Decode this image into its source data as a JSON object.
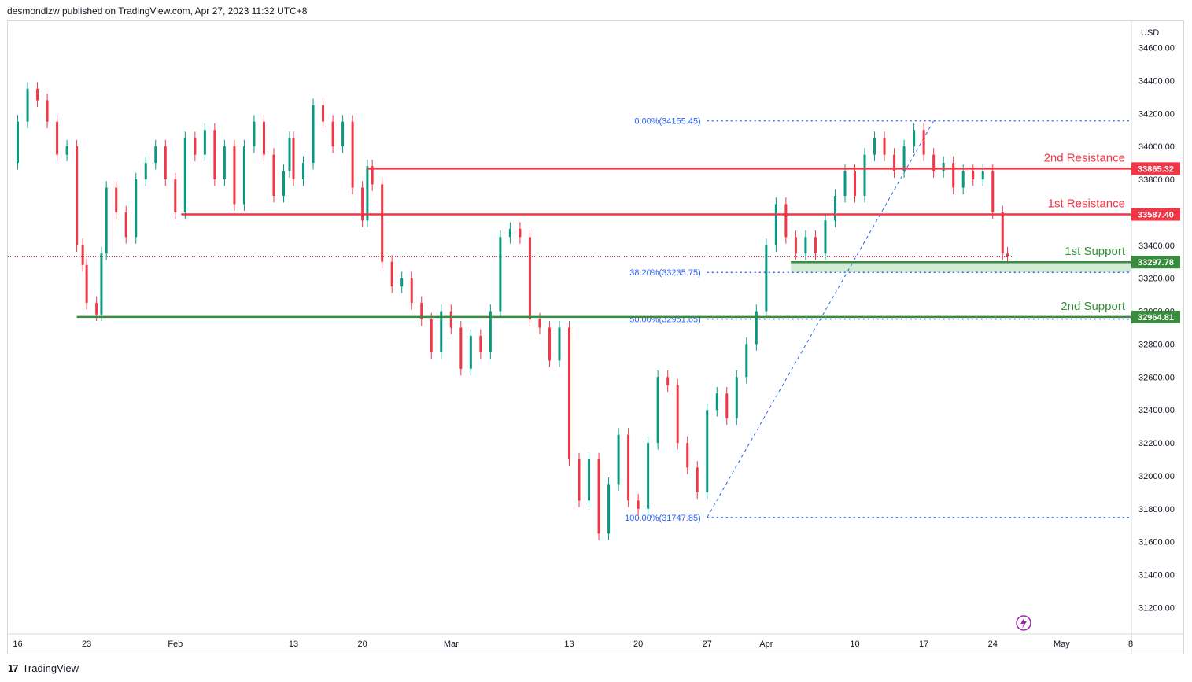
{
  "header": {
    "publisher_line": "desmondlzw published on TradingView.com, Apr 27, 2023 11:32 UTC+8"
  },
  "footer": {
    "brand": "TradingView",
    "logo_glyph": "17"
  },
  "chart_data": {
    "type": "candlestick",
    "currency": "USD",
    "ylim": [
      31040,
      34760
    ],
    "yticks": [
      34600,
      34400,
      34200,
      34000,
      33800,
      33600,
      33400,
      33200,
      33000,
      32800,
      32600,
      32400,
      32200,
      32000,
      31800,
      31600,
      31400,
      31200
    ],
    "ytick_labels": [
      "34600.00",
      "34400.00",
      "34200.00",
      "34000.00",
      "33800.00",
      "33600.00",
      "33400.00",
      "33200.00",
      "33000.00",
      "32800.00",
      "32600.00",
      "32400.00",
      "32200.00",
      "32000.00",
      "31800.00",
      "31600.00",
      "31400.00",
      "31200.00"
    ],
    "x_range_days": [
      -1,
      113
    ],
    "xticks": [
      {
        "label": "16",
        "day": 0
      },
      {
        "label": "23",
        "day": 7
      },
      {
        "label": "Feb",
        "day": 16
      },
      {
        "label": "13",
        "day": 28
      },
      {
        "label": "20",
        "day": 35
      },
      {
        "label": "Mar",
        "day": 44
      },
      {
        "label": "13",
        "day": 56
      },
      {
        "label": "20",
        "day": 63
      },
      {
        "label": "27",
        "day": 70
      },
      {
        "label": "Apr",
        "day": 76
      },
      {
        "label": "10",
        "day": 85
      },
      {
        "label": "17",
        "day": 92
      },
      {
        "label": "24",
        "day": 99
      },
      {
        "label": "May",
        "day": 106
      },
      {
        "label": "8",
        "day": 113
      }
    ],
    "candles": [
      [
        0.0,
        33900,
        34150
      ],
      [
        1.0,
        34150,
        34350
      ],
      [
        2.0,
        34350,
        34280
      ],
      [
        3.0,
        34280,
        34150
      ],
      [
        4.0,
        34150,
        33950
      ],
      [
        5.0,
        33950,
        34000
      ],
      [
        6.0,
        34000,
        33400
      ],
      [
        6.6,
        33400,
        33280
      ],
      [
        7.0,
        33280,
        33050
      ],
      [
        8.0,
        33050,
        32980
      ],
      [
        8.5,
        32980,
        33350
      ],
      [
        9.0,
        33350,
        33750
      ],
      [
        10.0,
        33750,
        33600
      ],
      [
        11.0,
        33600,
        33450
      ],
      [
        12.0,
        33450,
        33800
      ],
      [
        13.0,
        33800,
        33900
      ],
      [
        14.0,
        33900,
        34000
      ],
      [
        15.0,
        34000,
        33800
      ],
      [
        16.0,
        33800,
        33600
      ],
      [
        17.0,
        33600,
        34050
      ],
      [
        18.0,
        34050,
        33950
      ],
      [
        19.0,
        33950,
        34100
      ],
      [
        20.0,
        34100,
        33800
      ],
      [
        21.0,
        33800,
        34000
      ],
      [
        22.0,
        34000,
        33650
      ],
      [
        23.0,
        33650,
        34000
      ],
      [
        24.0,
        34000,
        34150
      ],
      [
        25.0,
        34150,
        33950
      ],
      [
        26.0,
        33950,
        33700
      ],
      [
        27.0,
        33700,
        33850
      ],
      [
        27.6,
        33850,
        34050
      ],
      [
        28.0,
        34050,
        33800
      ],
      [
        29.0,
        33800,
        33900
      ],
      [
        30.0,
        33900,
        34250
      ],
      [
        31.0,
        34250,
        34150
      ],
      [
        32.0,
        34150,
        34000
      ],
      [
        33.0,
        34000,
        34150
      ],
      [
        34.0,
        34150,
        33750
      ],
      [
        35.0,
        33750,
        33550
      ],
      [
        35.5,
        33550,
        33880
      ],
      [
        36.0,
        33880,
        33770
      ],
      [
        37.0,
        33770,
        33300
      ],
      [
        38.0,
        33300,
        33150
      ],
      [
        39.0,
        33150,
        33200
      ],
      [
        40.0,
        33200,
        33050
      ],
      [
        41.0,
        33050,
        32950
      ],
      [
        42.0,
        32950,
        32750
      ],
      [
        43.0,
        32750,
        33000
      ],
      [
        44.0,
        33000,
        32900
      ],
      [
        45.0,
        32900,
        32650
      ],
      [
        46.0,
        32650,
        32850
      ],
      [
        47.0,
        32850,
        32750
      ],
      [
        48.0,
        32750,
        33000
      ],
      [
        49.0,
        33000,
        33450
      ],
      [
        50.0,
        33450,
        33500
      ],
      [
        51.0,
        33500,
        33450
      ],
      [
        52.0,
        33450,
        32950
      ],
      [
        53.0,
        32950,
        32900
      ],
      [
        54.0,
        32900,
        32700
      ],
      [
        55.0,
        32700,
        32900
      ],
      [
        56.0,
        32900,
        32100
      ],
      [
        57.0,
        32100,
        31850
      ],
      [
        58.0,
        31850,
        32100
      ],
      [
        59.0,
        32100,
        31650
      ],
      [
        60.0,
        31650,
        31950
      ],
      [
        61.0,
        31950,
        32250
      ],
      [
        62.0,
        32250,
        31850
      ],
      [
        63.0,
        31850,
        31800
      ],
      [
        64.0,
        31800,
        32200
      ],
      [
        65.0,
        32200,
        32600
      ],
      [
        66.0,
        32600,
        32550
      ],
      [
        67.0,
        32550,
        32200
      ],
      [
        68.0,
        32200,
        32050
      ],
      [
        69.0,
        32050,
        31900
      ],
      [
        70.0,
        31900,
        32400
      ],
      [
        71.0,
        32400,
        32500
      ],
      [
        72.0,
        32500,
        32350
      ],
      [
        73.0,
        32350,
        32600
      ],
      [
        74.0,
        32600,
        32800
      ],
      [
        75.0,
        32800,
        33000
      ],
      [
        76.0,
        33000,
        33400
      ],
      [
        77.0,
        33400,
        33650
      ],
      [
        78.0,
        33650,
        33450
      ],
      [
        79.0,
        33450,
        33350
      ],
      [
        80.0,
        33350,
        33450
      ],
      [
        81.0,
        33450,
        33350
      ],
      [
        82.0,
        33350,
        33550
      ],
      [
        83.0,
        33550,
        33700
      ],
      [
        84.0,
        33700,
        33850
      ],
      [
        85.0,
        33850,
        33700
      ],
      [
        86.0,
        33700,
        33950
      ],
      [
        87.0,
        33950,
        34050
      ],
      [
        88.0,
        34050,
        33950
      ],
      [
        89.0,
        33950,
        33850
      ],
      [
        90.0,
        33850,
        34000
      ],
      [
        91.0,
        34000,
        34100
      ],
      [
        92.0,
        34100,
        33950
      ],
      [
        93.0,
        33950,
        33850
      ],
      [
        94.0,
        33850,
        33900
      ],
      [
        95.0,
        33900,
        33750
      ],
      [
        96.0,
        33750,
        33850
      ],
      [
        97.0,
        33850,
        33800
      ],
      [
        98.0,
        33800,
        33850
      ],
      [
        99.0,
        33850,
        33600
      ],
      [
        100.0,
        33600,
        33350
      ],
      [
        100.5,
        33350,
        33330
      ]
    ],
    "levels": [
      {
        "name": "2nd Resistance",
        "price": 33865.32,
        "price_label": "33865.32",
        "color": "#f23645",
        "start_day": 35.5
      },
      {
        "name": "1st Resistance",
        "price": 33587.4,
        "price_label": "33587.40",
        "color": "#f23645",
        "start_day": 16.6
      },
      {
        "name": "1st Support",
        "price": 33297.78,
        "price_label": "33297.78",
        "color": "#388e3c",
        "start_day": 78.5
      },
      {
        "name": "2nd Support",
        "price": 32964.81,
        "price_label": "32964.81",
        "color": "#388e3c",
        "start_day": 6.0
      }
    ],
    "fib": [
      {
        "label": "0.00%(34155.45)",
        "price": 34155.45
      },
      {
        "label": "38.20%(33235.75)",
        "price": 33235.75
      },
      {
        "label": "50.00%(32951.65)",
        "price": 32951.65
      },
      {
        "label": "100.00%(31747.85)",
        "price": 31747.85
      }
    ],
    "fib_from": {
      "day": 70.0,
      "price": 31747.85
    },
    "fib_to": {
      "day": 93.0,
      "price": 34155.45
    },
    "last_price": 33330,
    "colors": {
      "up": "#089981",
      "down": "#f23645",
      "axis_text": "#131722",
      "grid": "#e0e3eb",
      "fib": "#2962ff",
      "support_zone": "#c8e6c9"
    }
  }
}
